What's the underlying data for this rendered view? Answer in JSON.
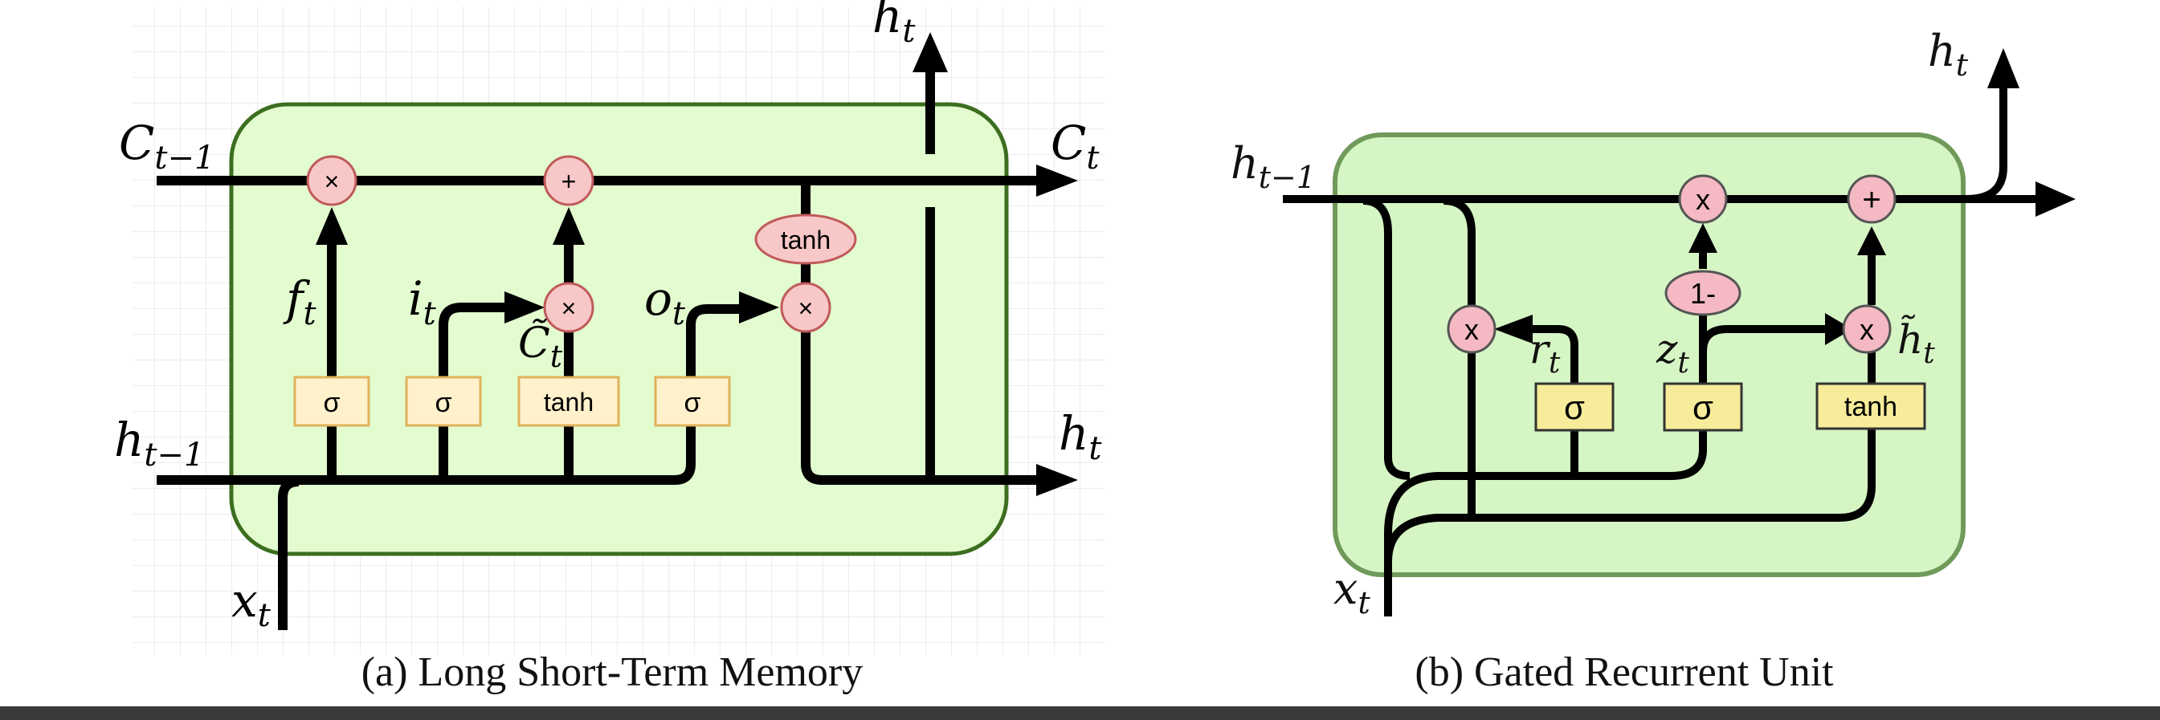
{
  "lstm": {
    "caption": "(a) Long Short-Term Memory",
    "labels": {
      "c_prev": [
        "C",
        "t−1"
      ],
      "c_next": [
        "C",
        "t"
      ],
      "h_prev": [
        "h",
        "t−1"
      ],
      "h_out_right": [
        "h",
        "t"
      ],
      "h_out_top": [
        "h",
        "t"
      ],
      "x": [
        "x",
        "t"
      ],
      "f": [
        "f",
        "t"
      ],
      "i": [
        "i",
        "t"
      ],
      "o": [
        "o",
        "t"
      ],
      "c_tilde": [
        "C̃",
        "t"
      ]
    },
    "gates": {
      "forget": "σ",
      "input": "σ",
      "candidate": "tanh",
      "output": "σ",
      "cell_tanh": "tanh"
    },
    "ops": {
      "forget_mul": "×",
      "add": "+",
      "input_mul": "×",
      "output_mul": "×"
    },
    "colors": {
      "cell_fill": "#e2fccf",
      "cell_stroke": "#3c6e1f",
      "op_fill": "#f8c8c8",
      "op_stroke": "#c05a5a",
      "gate_fill": "#fff1cc",
      "gate_stroke": "#e0b25a"
    }
  },
  "gru": {
    "caption": "(b) Gated Recurrent Unit",
    "labels": {
      "h_prev": [
        "h",
        "t−1"
      ],
      "h_out": [
        "h",
        "t"
      ],
      "x": [
        "x",
        "t"
      ],
      "r": [
        "r",
        "t"
      ],
      "z": [
        "z",
        "t"
      ],
      "h_tilde": [
        "h̃",
        "t"
      ]
    },
    "gates": {
      "reset": "σ",
      "update": "σ",
      "candidate": "tanh"
    },
    "ops": {
      "reset_mul": "x",
      "update_mul": "x",
      "one_minus": "1-",
      "candidate_mul": "x",
      "add": "+"
    },
    "colors": {
      "cell_fill": "#d6f5c4",
      "cell_stroke": "#6f9a5a",
      "op_fill": "#f4b9c2",
      "op_stroke": "#555555",
      "gate_fill": "#f6ec9a",
      "gate_stroke": "#333333"
    }
  }
}
